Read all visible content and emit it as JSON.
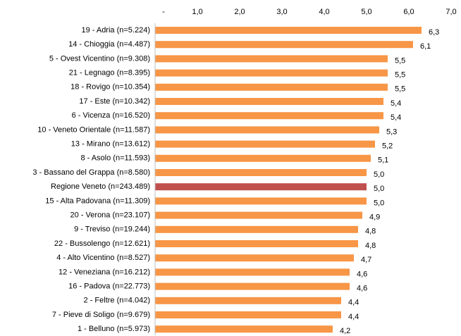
{
  "chart_data": {
    "type": "bar",
    "orientation": "horizontal",
    "categories": [
      "19 - Adria (n=5.224)",
      "14 - Chioggia (n=4.487)",
      "5 - Ovest Vicentino (n=9.308)",
      "21 - Legnago (n=8.395)",
      "18 - Rovigo (n=10.354)",
      "17 - Este (n=10.342)",
      "6 - Vicenza (n=16.520)",
      "10 - Veneto Orientale (n=11.587)",
      "13 - Mirano (n=13.612)",
      "8 - Asolo (n=11.593)",
      "3 - Bassano del Grappa (n=8.580)",
      "Regione Veneto (n=243.489)",
      "15 - Alta Padovana (n=11.309)",
      "20 - Verona (n=23.107)",
      "9 - Treviso (n=19.244)",
      "22 - Bussolengo (n=12.621)",
      "4 - Alto Vicentino (n=8.527)",
      "12 - Veneziana (n=16.212)",
      "16 - Padova (n=22.773)",
      "2 - Feltre (n=4.042)",
      "7 - Pieve di Soligo (n=9.679)",
      "1 - Belluno (n=5.973)"
    ],
    "values": [
      6.3,
      6.1,
      5.5,
      5.5,
      5.5,
      5.4,
      5.4,
      5.3,
      5.2,
      5.1,
      5.0,
      5.0,
      5.0,
      4.9,
      4.8,
      4.8,
      4.7,
      4.6,
      4.6,
      4.4,
      4.4,
      4.2
    ],
    "value_labels": [
      "6,3",
      "6,1",
      "5,5",
      "5,5",
      "5,5",
      "5,4",
      "5,4",
      "5,3",
      "5,2",
      "5,1",
      "5,0",
      "5,0",
      "5,0",
      "4,9",
      "4,8",
      "4,8",
      "4,7",
      "4,6",
      "4,6",
      "4,4",
      "4,4",
      "4,2"
    ],
    "colors": [
      "#f79646",
      "#f79646",
      "#f79646",
      "#f79646",
      "#f79646",
      "#f79646",
      "#f79646",
      "#f79646",
      "#f79646",
      "#f79646",
      "#f79646",
      "#c0504d",
      "#f79646",
      "#f79646",
      "#f79646",
      "#f79646",
      "#f79646",
      "#f79646",
      "#f79646",
      "#f79646",
      "#f79646",
      "#f79646"
    ],
    "xlim": [
      0,
      7
    ],
    "xticks": [
      {
        "value": 0,
        "label": "-"
      },
      {
        "value": 1,
        "label": "1,0"
      },
      {
        "value": 2,
        "label": "2,0"
      },
      {
        "value": 3,
        "label": "3,0"
      },
      {
        "value": 4,
        "label": "4,0"
      },
      {
        "value": 5,
        "label": "5,0"
      },
      {
        "value": 6,
        "label": "6,0"
      },
      {
        "value": 7,
        "label": "7,0"
      }
    ],
    "grid": false
  }
}
